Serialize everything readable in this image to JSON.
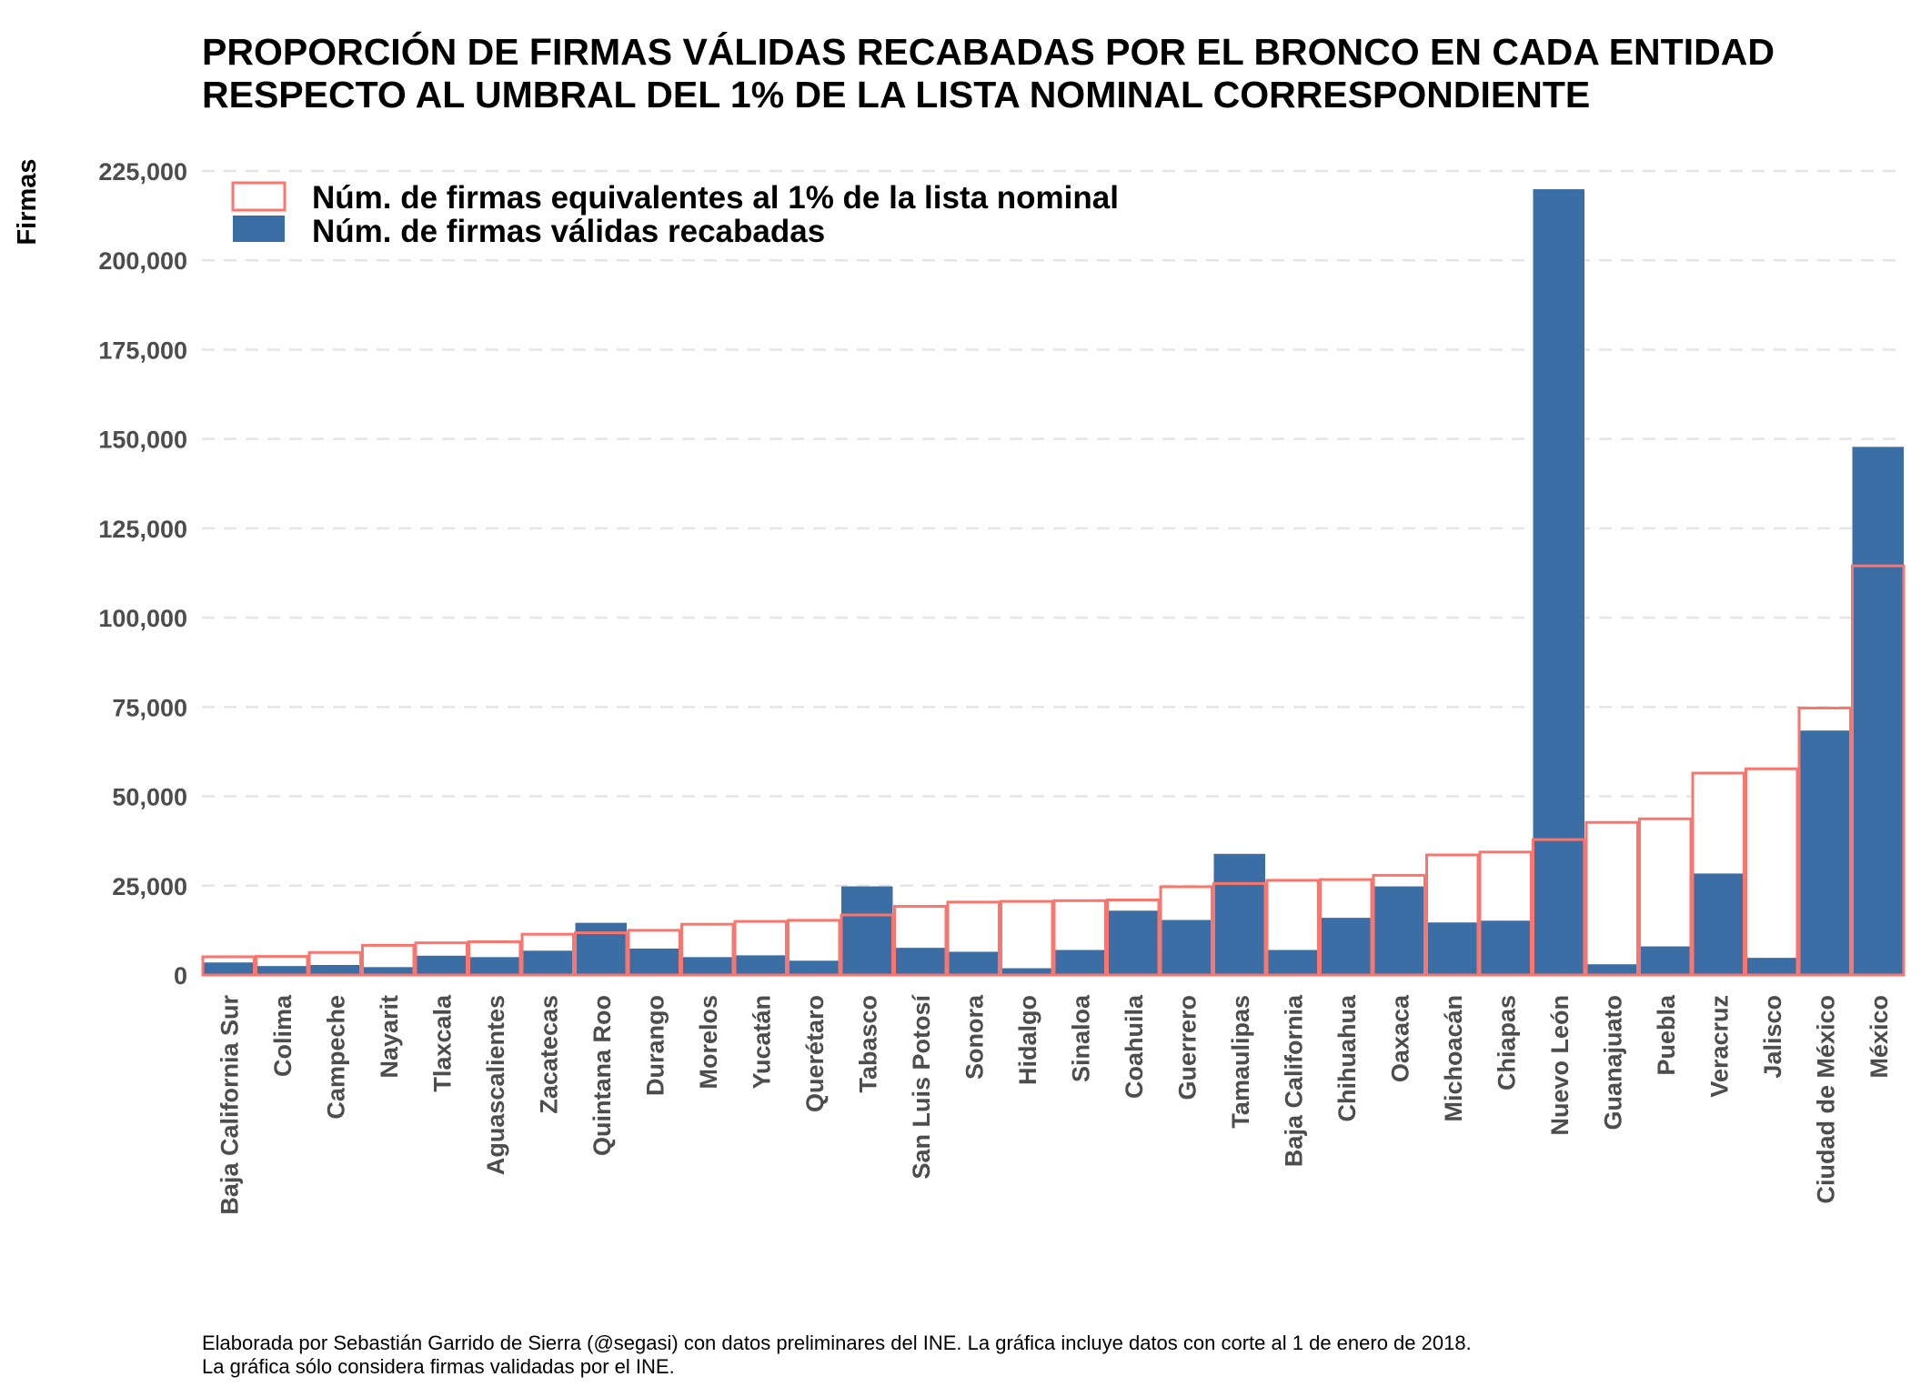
{
  "chart_data": {
    "type": "bar",
    "title_lines": [
      "PROPORCIÓN DE FIRMAS VÁLIDAS RECABADAS POR EL BRONCO EN CADA ENTIDAD",
      "RESPECTO AL UMBRAL DEL 1% DE LA LISTA NOMINAL CORRESPONDIENTE"
    ],
    "ylabel": "Firmas",
    "xlabel": "",
    "ylim": [
      0,
      225000
    ],
    "yticks": [
      0,
      25000,
      50000,
      75000,
      100000,
      125000,
      150000,
      175000,
      200000,
      225000
    ],
    "ytick_labels": [
      "0",
      "25,000",
      "50,000",
      "75,000",
      "100,000",
      "125,000",
      "150,000",
      "175,000",
      "200,000",
      "225,000"
    ],
    "grid": "horizontal dashed",
    "legend_position": "top-left",
    "colors": {
      "valid_fill": "#3a6ea5",
      "threshold_outline": "#f8766d",
      "grid": "#e5e5e5"
    },
    "categories": [
      "Baja California Sur",
      "Colima",
      "Campeche",
      "Nayarit",
      "Tlaxcala",
      "Aguascalientes",
      "Zacatecas",
      "Quintana Roo",
      "Durango",
      "Morelos",
      "Yucatán",
      "Querétaro",
      "Tabasco",
      "San Luis Potosí",
      "Sonora",
      "Hidalgo",
      "Sinaloa",
      "Coahuila",
      "Guerrero",
      "Tamaulipas",
      "Baja California",
      "Chihuahua",
      "Oaxaca",
      "Michoacán",
      "Chiapas",
      "Nuevo León",
      "Guanajuato",
      "Puebla",
      "Veracruz",
      "Jalisco",
      "Ciudad de México",
      "México"
    ],
    "series": [
      {
        "name": "Núm. de firmas equivalentes al 1% de la lista nominal",
        "style": "outline",
        "values": [
          5100,
          5200,
          6300,
          8300,
          9000,
          9300,
          11400,
          11800,
          12500,
          14200,
          15000,
          15300,
          16800,
          19200,
          20400,
          20600,
          20800,
          21000,
          24700,
          25600,
          26500,
          26700,
          27900,
          33600,
          34400,
          37900,
          42700,
          43700,
          56500,
          57700,
          74700,
          114500
        ]
      },
      {
        "name": "Núm. de firmas válidas recabadas",
        "style": "filled",
        "values": [
          3500,
          2500,
          2800,
          2200,
          5400,
          5000,
          6800,
          14600,
          7400,
          5000,
          5500,
          4000,
          24800,
          7600,
          6500,
          1900,
          7000,
          18000,
          15400,
          33900,
          7000,
          16000,
          24800,
          14700,
          15200,
          219900,
          3000,
          8000,
          28400,
          4800,
          68400,
          147800
        ]
      }
    ]
  },
  "caption": {
    "lines": [
      "Elaborada por Sebastián Garrido de Sierra (@segasi) con datos preliminares del INE. La gráfica incluye datos con corte al 1 de enero de 2018.",
      "La gráfica sólo considera firmas validadas por el INE."
    ]
  }
}
